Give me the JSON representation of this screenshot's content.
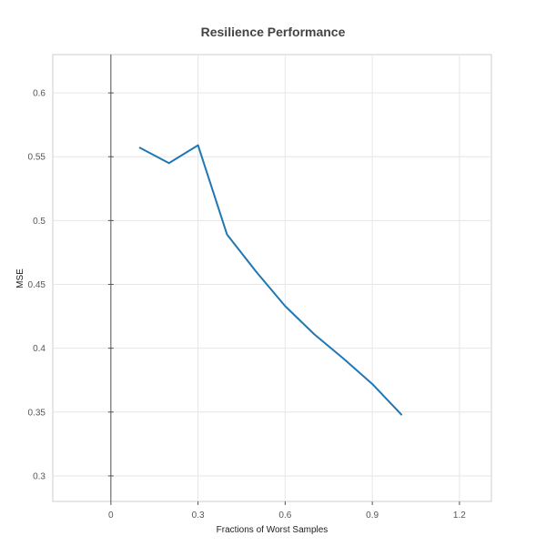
{
  "chart_data": {
    "type": "line",
    "title": "Resilience Performance",
    "xlabel": "Fractions of Worst Samples",
    "ylabel": "MSE",
    "xlim": [
      -0.2,
      1.31
    ],
    "ylim": [
      0.28,
      0.63
    ],
    "x_ticks": [
      0,
      0.3,
      0.6,
      0.9,
      1.2
    ],
    "x_tick_labels": [
      "0",
      "0.3",
      "0.6",
      "0.9",
      "1.2"
    ],
    "y_ticks": [
      0.3,
      0.35,
      0.4,
      0.45,
      0.5,
      0.55,
      0.6
    ],
    "y_tick_labels": [
      "0.3",
      "0.35",
      "0.4",
      "0.45",
      "0.5",
      "0.55",
      "0.6"
    ],
    "grid": true,
    "zero_line": "x=0",
    "series": [
      {
        "x": [
          0.1,
          0.2,
          0.3,
          0.4,
          0.5,
          0.6,
          0.7,
          0.8,
          0.9,
          1.0
        ],
        "y": [
          0.557,
          0.545,
          0.559,
          0.489,
          0.46,
          0.433,
          0.411,
          0.392,
          0.372,
          0.348
        ],
        "color": "#1f77b4"
      }
    ]
  }
}
